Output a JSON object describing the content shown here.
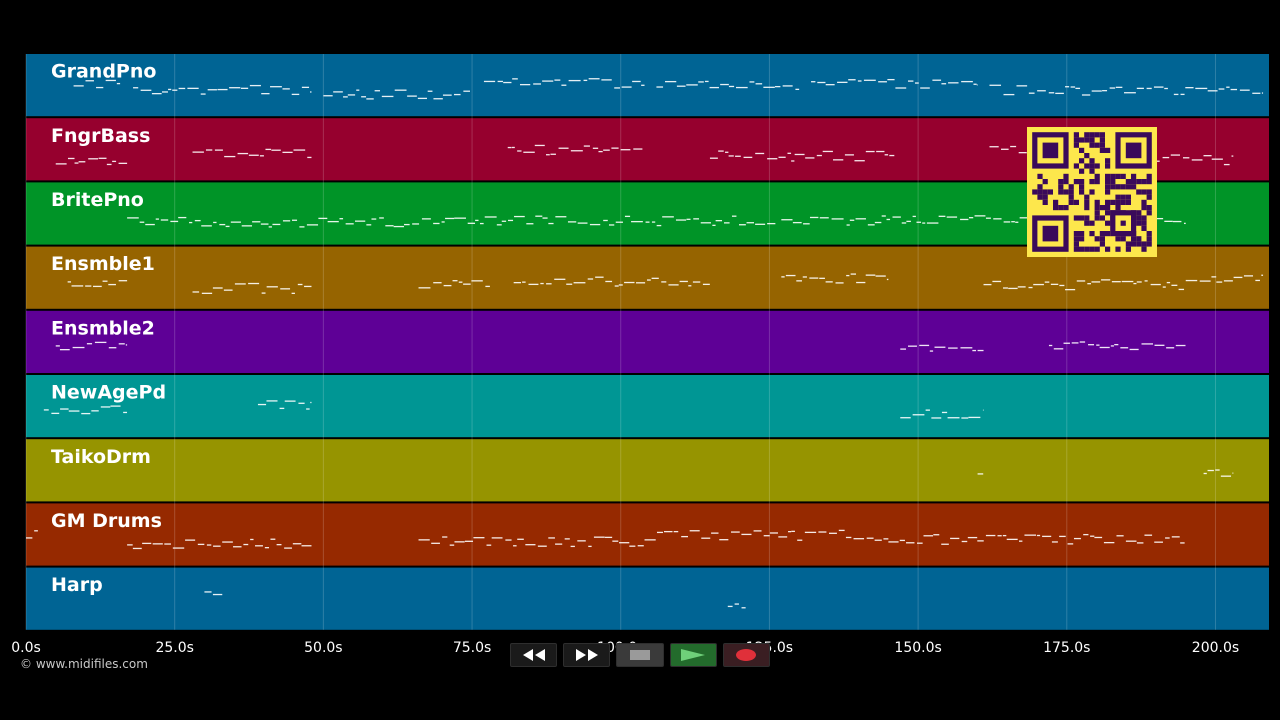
{
  "app": {
    "copyright": "© www.midifiles.com"
  },
  "tracks": [
    {
      "name": "GrandPno",
      "color": "#006494"
    },
    {
      "name": "FngrBass",
      "color": "#96002e"
    },
    {
      "name": "BritePno",
      "color": "#009427"
    },
    {
      "name": "Ensmble1",
      "color": "#966400"
    },
    {
      "name": "Ensmble2",
      "color": "#5e0096"
    },
    {
      "name": "NewAgePd",
      "color": "#009694"
    },
    {
      "name": "TaikoDrm",
      "color": "#969400"
    },
    {
      "name": "GM Drums",
      "color": "#962900"
    },
    {
      "name": "Harp",
      "color": "#006494"
    }
  ],
  "timeline": {
    "ticks": [
      "0.0s",
      "25.0s",
      "50.0s",
      "75.0s",
      "100.0s",
      "125.0s",
      "150.0s",
      "175.0s",
      "200.0s"
    ],
    "tick_values": [
      0,
      25,
      50,
      75,
      100,
      125,
      150,
      175,
      200
    ],
    "max_seconds": 209
  },
  "transport": {
    "buttons": [
      {
        "name": "rewind-button",
        "icon": "rewind-icon"
      },
      {
        "name": "fast-forward-button",
        "icon": "fast-forward-icon"
      },
      {
        "name": "stop-button",
        "icon": "stop-icon"
      },
      {
        "name": "play-button",
        "icon": "play-icon"
      },
      {
        "name": "record-button",
        "icon": "record-icon"
      }
    ]
  },
  "qr": {
    "icon": "qr-code-icon",
    "color": "#fde74c",
    "dark": "#3a0a5a"
  },
  "notes": {
    "GrandPno": [
      [
        8,
        16
      ],
      [
        18,
        48
      ],
      [
        50,
        75
      ],
      [
        77,
        104
      ],
      [
        106,
        130
      ],
      [
        132,
        160
      ],
      [
        162,
        192
      ],
      [
        193,
        208
      ]
    ],
    "FngrBass": [
      [
        5,
        17
      ],
      [
        28,
        48
      ],
      [
        81,
        104
      ],
      [
        115,
        146
      ],
      [
        162,
        172
      ],
      [
        190,
        203
      ]
    ],
    "BritePno": [
      [
        17,
        72
      ],
      [
        72,
        126
      ],
      [
        127,
        195
      ]
    ],
    "Ensmble1": [
      [
        7,
        17
      ],
      [
        28,
        48
      ],
      [
        66,
        78
      ],
      [
        82,
        115
      ],
      [
        127,
        145
      ],
      [
        161,
        195
      ],
      [
        195,
        208
      ]
    ],
    "Ensmble2": [
      [
        5,
        17
      ],
      [
        147,
        161
      ],
      [
        172,
        195
      ]
    ],
    "NewAgePd": [
      [
        3,
        17
      ],
      [
        39,
        48
      ],
      [
        147,
        161
      ]
    ],
    "TaikoDrm": [
      [
        160,
        161
      ],
      [
        198,
        203
      ]
    ],
    "GM Drums": [
      [
        0,
        2
      ],
      [
        17,
        48
      ],
      [
        66,
        104
      ],
      [
        104,
        145
      ],
      [
        145,
        195
      ]
    ],
    "Harp": [
      [
        30,
        33
      ],
      [
        118,
        121
      ]
    ]
  }
}
